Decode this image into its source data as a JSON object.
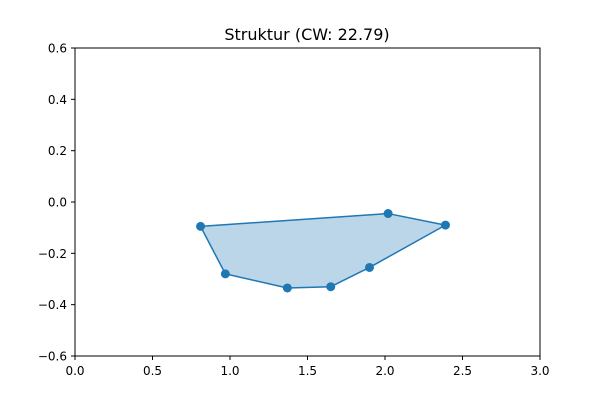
{
  "chart_data": {
    "type": "line",
    "title": "Struktur (CW: 22.79)",
    "xlabel": "",
    "ylabel": "",
    "xlim": [
      0.0,
      3.0
    ],
    "ylim": [
      -0.6,
      0.6
    ],
    "xticks": [
      0.0,
      0.5,
      1.0,
      1.5,
      2.0,
      2.5,
      3.0
    ],
    "xtick_labels": [
      "0.0",
      "0.5",
      "1.0",
      "1.5",
      "2.0",
      "2.5",
      "3.0"
    ],
    "yticks": [
      -0.6,
      -0.4,
      -0.2,
      0.0,
      0.2,
      0.4,
      0.6
    ],
    "ytick_labels": [
      "−0.6",
      "−0.4",
      "−0.2",
      "0.0",
      "0.2",
      "0.4",
      "0.6"
    ],
    "grid": false,
    "filled": true,
    "closed": true,
    "series": [
      {
        "x": [
          0.81,
          0.97,
          1.37,
          1.65,
          1.9,
          2.39,
          2.02
        ],
        "y": [
          -0.095,
          -0.28,
          -0.335,
          -0.33,
          -0.255,
          -0.09,
          -0.045
        ]
      }
    ],
    "colors": {
      "line": "#1f77b4",
      "fill": "#1f77b4",
      "marker": "#1f77b4"
    },
    "fill_alpha": 0.3
  }
}
